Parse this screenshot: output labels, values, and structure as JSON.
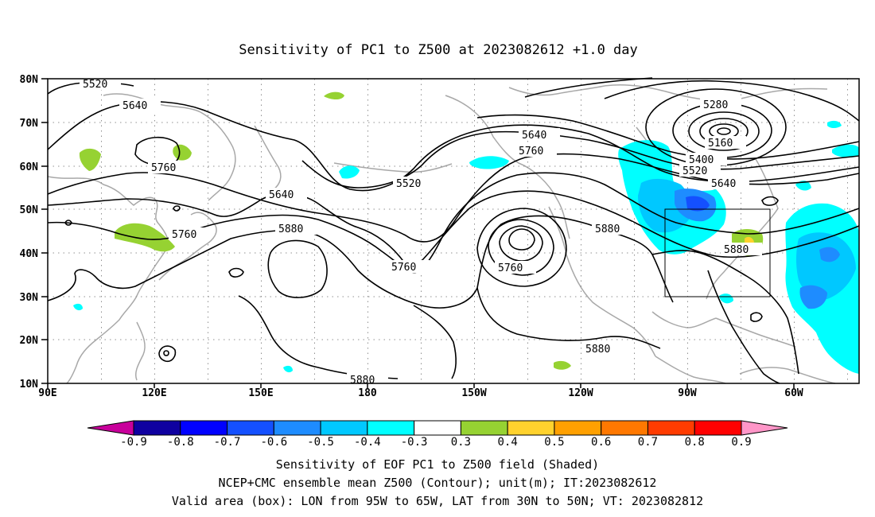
{
  "title": "Sensitivity of PC1 to Z500 at 2023082612 +1.0 day",
  "map": {
    "lon_labels": [
      "90E",
      "120E",
      "150E",
      "180",
      "150W",
      "120W",
      "90W",
      "60W"
    ],
    "lat_labels": [
      "80N",
      "70N",
      "60N",
      "50N",
      "40N",
      "30N",
      "20N",
      "10N"
    ],
    "contour_labels": [
      "5520",
      "5640",
      "5760",
      "5640",
      "5760",
      "5880",
      "5520",
      "5640",
      "5760",
      "5760",
      "5880",
      "5280",
      "5160",
      "5400",
      "5520",
      "5640",
      "5880",
      "5760",
      "5880",
      "5880"
    ],
    "valid_box": {
      "lon_west": -95,
      "lon_east": -65,
      "lat_south": 30,
      "lat_north": 50
    }
  },
  "colorbar": {
    "labels": [
      "-0.9",
      "-0.8",
      "-0.7",
      "-0.6",
      "-0.5",
      "-0.4",
      "-0.3",
      "0.3",
      "0.4",
      "0.5",
      "0.6",
      "0.7",
      "0.8",
      "0.9"
    ],
    "colors": [
      "#0f00a0",
      "#0000ff",
      "#1450ff",
      "#1e8cff",
      "#00c8ff",
      "#00ffff",
      "#ffffff",
      "#96d232",
      "#ffd22d",
      "#ffa000",
      "#ff7800",
      "#ff3c00",
      "#ff0000"
    ],
    "low_end_color": "#c8009b",
    "high_end_color": "#ff96c8"
  },
  "captions": {
    "line1": "Sensitivity of EOF PC1 to Z500 field (Shaded)",
    "line2": "NCEP+CMC ensemble mean Z500 (Contour); unit(m); IT:2023082612",
    "line3": "Valid area (box): LON from 95W to 65W, LAT from 30N to 50N; VT: 2023082812"
  }
}
